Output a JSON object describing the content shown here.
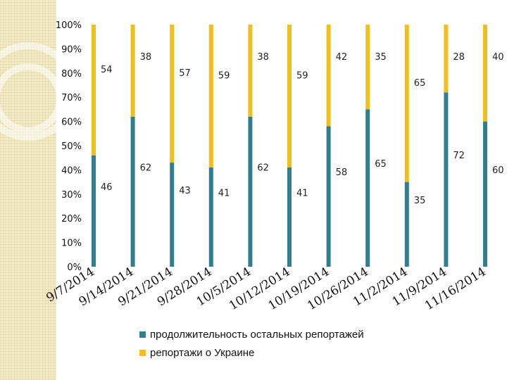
{
  "chart_data": {
    "type": "bar",
    "stacked": true,
    "percent": true,
    "categories": [
      "9/7/2014",
      "9/14/2014",
      "9/21/2014",
      "9/28/2014",
      "10/5/2014",
      "10/12/2014",
      "10/19/2014",
      "10/26/2014",
      "11/2/2014",
      "11/9/2014",
      "11/16/2014"
    ],
    "series": [
      {
        "name": "продолжительность остальных репортажей",
        "color": "#2e7f8f",
        "values": [
          46,
          62,
          43,
          41,
          62,
          41,
          58,
          65,
          35,
          72,
          60
        ]
      },
      {
        "name": "репортажи о Украине",
        "color": "#f2bf1a",
        "values": [
          54,
          38,
          57,
          59,
          38,
          59,
          42,
          35,
          65,
          28,
          40
        ]
      }
    ],
    "yticks": [
      "0%",
      "10%",
      "20%",
      "30%",
      "40%",
      "50%",
      "60%",
      "70%",
      "80%",
      "90%",
      "100%"
    ],
    "ylim": [
      0,
      100
    ],
    "legend_position": "bottom"
  }
}
